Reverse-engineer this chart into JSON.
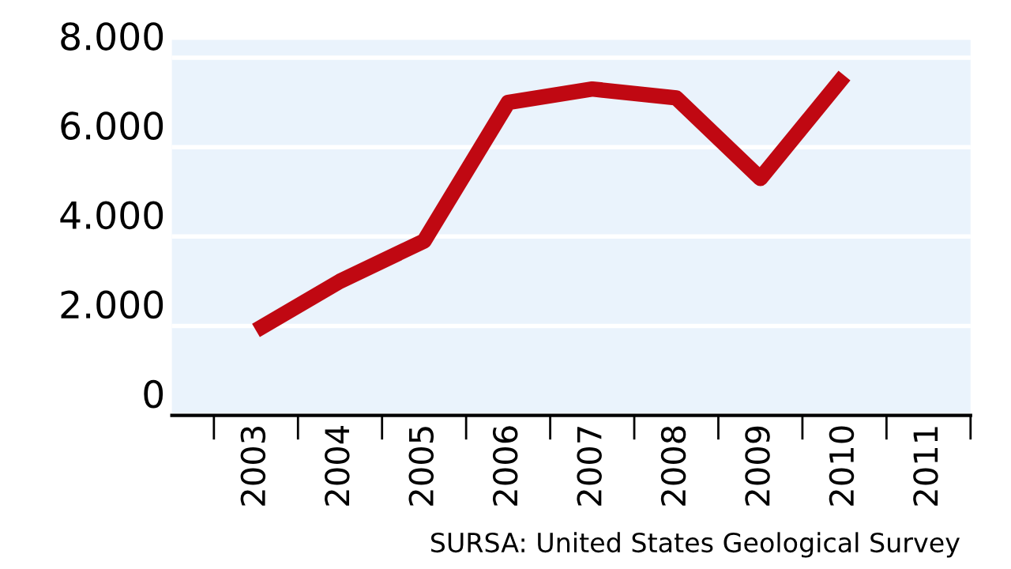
{
  "chart_data": {
    "type": "line",
    "categories": [
      "2003",
      "2004",
      "2005",
      "2006",
      "2007",
      "2008",
      "2009",
      "2010",
      "2011"
    ],
    "series": [
      {
        "color": "#c00812",
        "values": [
          1900,
          3000,
          3900,
          7000,
          7300,
          7100,
          5300,
          7600,
          null
        ]
      }
    ],
    "ylim": [
      0,
      8400
    ],
    "yticks": [
      {
        "value": 0,
        "label": "0"
      },
      {
        "value": 2000,
        "label": "2.000"
      },
      {
        "value": 4000,
        "label": "4.000"
      },
      {
        "value": 6000,
        "label": "6.000"
      },
      {
        "value": 8000,
        "label": "8.000"
      }
    ],
    "grid": "y",
    "marker": "none",
    "line_style": "solid",
    "annotations": [
      "SURSA: United States Geological Survey"
    ]
  }
}
